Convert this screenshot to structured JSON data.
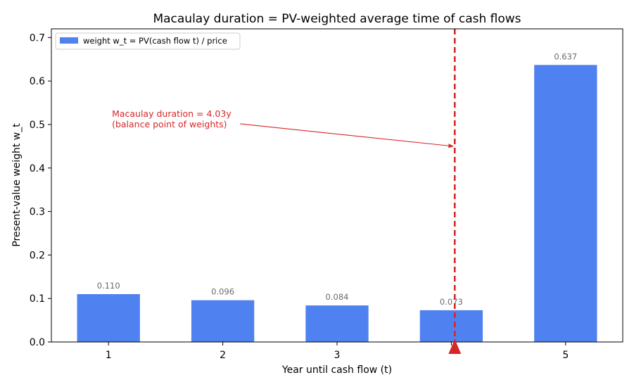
{
  "chart_data": {
    "type": "bar",
    "title": "Macaulay duration = PV-weighted average time of cash flows",
    "xlabel": "Year until cash flow (t)",
    "ylabel": "Present-value weight w_t",
    "categories": [
      1,
      2,
      3,
      4,
      5
    ],
    "x_tick_labels": [
      "1",
      "2",
      "3",
      "",
      "5"
    ],
    "series": [
      {
        "name": "weight w_t = PV(cash flow t) / price",
        "values": [
          0.11,
          0.096,
          0.084,
          0.073,
          0.637
        ],
        "labels": [
          "0.110",
          "0.096",
          "0.084",
          "0.073",
          "0.637"
        ],
        "color": "#4f81f0"
      }
    ],
    "xlim": [
      0.5,
      5.5
    ],
    "ylim": [
      0,
      0.72
    ],
    "y_ticks": [
      0.0,
      0.1,
      0.2,
      0.3,
      0.4,
      0.5,
      0.6,
      0.7
    ],
    "y_tick_labels": [
      "0.0",
      "0.1",
      "0.2",
      "0.3",
      "0.4",
      "0.5",
      "0.6",
      "0.7"
    ],
    "grid": false,
    "legend_position": "top-left",
    "reference_line": {
      "x": 4.03,
      "color": "#d62728",
      "style": "dashed",
      "marker": "triangle-up"
    },
    "annotation": {
      "lines": [
        "Macaulay duration = 4.03y",
        "(balance point of weights)"
      ],
      "color": "#d62728",
      "text_at": [
        1.03,
        0.5
      ],
      "arrow_to": [
        4.03,
        0.45
      ]
    }
  }
}
